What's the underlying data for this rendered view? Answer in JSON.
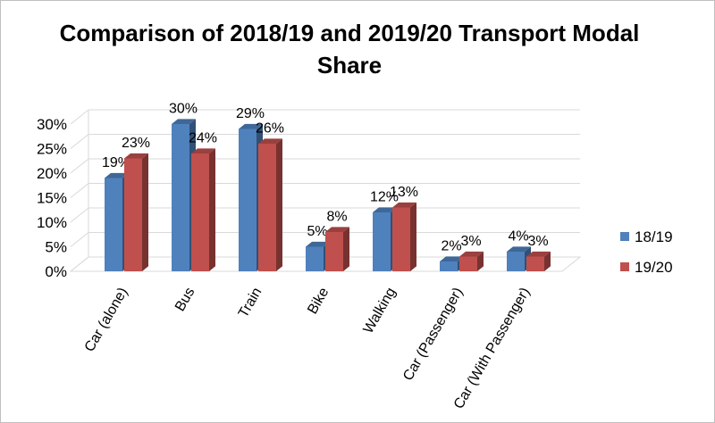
{
  "chart_data": {
    "type": "bar",
    "title": "Comparison of 2018/19 and 2019/20 Transport Modal Share",
    "categories": [
      "Car (alone)",
      "Bus",
      "Train",
      "Bike",
      "Walking",
      "Car (Passenger)",
      "Car (With Passenger)"
    ],
    "series": [
      {
        "name": "18/19",
        "values": [
          19,
          30,
          29,
          5,
          12,
          2,
          4
        ],
        "labels": [
          "19%",
          "30%",
          "29%",
          "5%",
          "12%",
          "2%",
          "4%"
        ]
      },
      {
        "name": "19/20",
        "values": [
          23,
          24,
          26,
          8,
          13,
          3,
          3
        ],
        "labels": [
          "23%",
          "24%",
          "26%",
          "8%",
          "13%",
          "3%",
          "3%"
        ]
      }
    ],
    "y_ticks": [
      "0%",
      "5%",
      "10%",
      "15%",
      "20%",
      "25%",
      "30%"
    ],
    "ylim": [
      0,
      30
    ],
    "grid": true,
    "legend_position": "right",
    "colors": {
      "18/19": "#4f81bd",
      "19/20": "#c0504d"
    }
  }
}
